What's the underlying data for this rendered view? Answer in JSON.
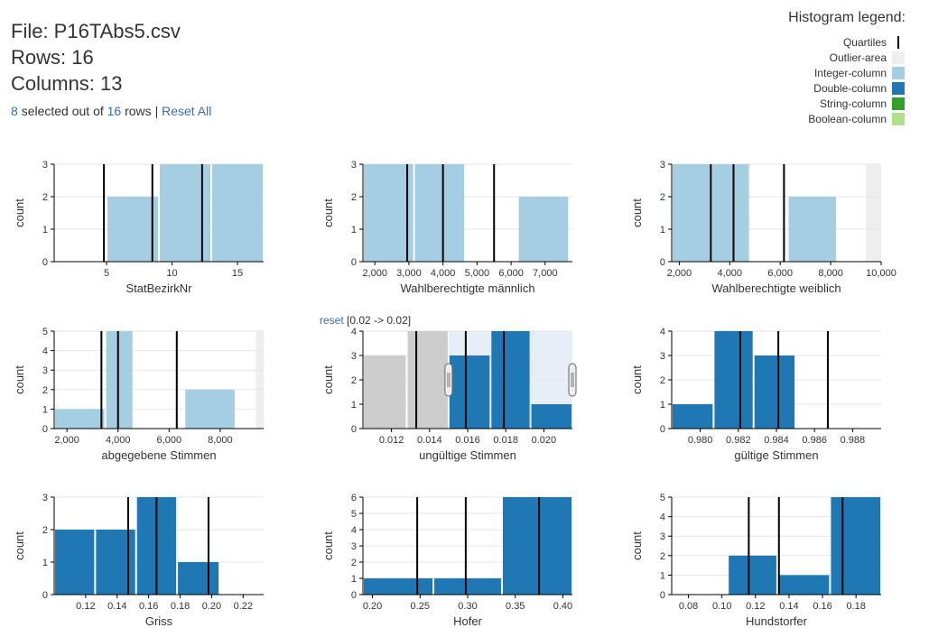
{
  "file": {
    "name_line": "File: P16TAbs5.csv",
    "rows_line": "Rows: 16",
    "columns_line": "Columns: 13"
  },
  "selection": {
    "selected": "8",
    "middle": "selected out of",
    "total": "16",
    "rows_word": "rows",
    "separator": "|",
    "reset_all": "Reset All"
  },
  "legend": {
    "title": "Histogram legend:",
    "items": [
      {
        "label": "Quartiles",
        "kind": "line",
        "color": "#000000"
      },
      {
        "label": "Outlier-area",
        "kind": "box",
        "color": "#eeeeee"
      },
      {
        "label": "Integer-column",
        "kind": "box",
        "color": "#a6cee3"
      },
      {
        "label": "Double-column",
        "kind": "box",
        "color": "#1f78b4"
      },
      {
        "label": "String-column",
        "kind": "box",
        "color": "#33a02c"
      },
      {
        "label": "Boolean-column",
        "kind": "box",
        "color": "#b2df8a"
      }
    ]
  },
  "colors": {
    "integer": "#a6cee3",
    "double": "#1f78b4",
    "deselected": "#cccccc",
    "outlier": "#eeeeee",
    "brush": "#e8eef7",
    "quartile": "#000000",
    "link": "#3b6ea5"
  },
  "chart_data": [
    {
      "type": "bar",
      "column": "StatBezirkNr",
      "column_type": "integer",
      "xlabel": "StatBezirkNr",
      "ylabel": "count",
      "xlim": [
        1,
        17
      ],
      "ylim": [
        0,
        3
      ],
      "xticks": [
        5,
        10,
        15
      ],
      "xtick_labels": [
        "5",
        "10",
        "15"
      ],
      "yticks": [
        0,
        1,
        2,
        3
      ],
      "ytick_labels": [
        "0",
        "1",
        "2",
        "3"
      ],
      "bins": [
        {
          "x0": 5,
          "x1": 9,
          "count": 2
        },
        {
          "x0": 9,
          "x1": 13,
          "count": 3
        },
        {
          "x0": 13,
          "x1": 17,
          "count": 3
        }
      ],
      "quartiles": [
        4.8,
        8.5,
        12.3
      ]
    },
    {
      "type": "bar",
      "column": "Wahlberechtigte männlich",
      "column_type": "integer",
      "xlabel": "Wahlberechtigte männlich",
      "ylabel": "count",
      "xlim": [
        1650,
        7800
      ],
      "ylim": [
        0,
        3
      ],
      "xticks": [
        2000,
        3000,
        4000,
        5000,
        6000,
        7000
      ],
      "xtick_labels": [
        "2,000",
        "3,000",
        "4,000",
        "5,000",
        "6,000",
        "7,000"
      ],
      "yticks": [
        0,
        1,
        2,
        3
      ],
      "ytick_labels": [
        "0",
        "1",
        "2",
        "3"
      ],
      "bins": [
        {
          "x0": 1650,
          "x1": 3150,
          "count": 3
        },
        {
          "x0": 3150,
          "x1": 4650,
          "count": 3
        },
        {
          "x0": 6200,
          "x1": 7700,
          "count": 2
        }
      ],
      "quartiles": [
        2950,
        4000,
        5500
      ]
    },
    {
      "type": "bar",
      "column": "Wahlberechtigte weiblich",
      "column_type": "integer",
      "xlabel": "Wahlberechtigte weiblich",
      "ylabel": "count",
      "xlim": [
        1700,
        10000
      ],
      "ylim": [
        0,
        3
      ],
      "outlier_from": 9400,
      "xticks": [
        2000,
        4000,
        6000,
        8000,
        10000
      ],
      "xtick_labels": [
        "2,000",
        "4,000",
        "6,000",
        "8,000",
        "10,000"
      ],
      "yticks": [
        0,
        1,
        2,
        3
      ],
      "ytick_labels": [
        "0",
        "1",
        "2",
        "3"
      ],
      "bins": [
        {
          "x0": 1700,
          "x1": 3250,
          "count": 3
        },
        {
          "x0": 3250,
          "x1": 4800,
          "count": 3
        },
        {
          "x0": 6300,
          "x1": 8250,
          "count": 2
        }
      ],
      "quartiles": [
        3250,
        4150,
        6150
      ]
    },
    {
      "type": "bar",
      "column": "abgegebene Stimmen",
      "column_type": "integer",
      "xlabel": "abgegebene Stimmen",
      "ylabel": "count",
      "xlim": [
        1500,
        9700
      ],
      "ylim": [
        0,
        5
      ],
      "outlier_from": 9400,
      "xticks": [
        2000,
        4000,
        6000,
        8000
      ],
      "xtick_labels": [
        "2,000",
        "4,000",
        "6,000",
        "8,000"
      ],
      "yticks": [
        0,
        1,
        2,
        3,
        4,
        5
      ],
      "ytick_labels": [
        "0",
        "1",
        "2",
        "3",
        "4",
        "5"
      ],
      "bins": [
        {
          "x0": 1500,
          "x1": 3500,
          "count": 1
        },
        {
          "x0": 3500,
          "x1": 4600,
          "count": 5
        },
        {
          "x0": 6600,
          "x1": 8600,
          "count": 2
        }
      ],
      "quartiles": [
        3350,
        4000,
        6300
      ]
    },
    {
      "type": "bar",
      "column": "ungültige Stimmen",
      "column_type": "double",
      "xlabel": "ungültige Stimmen",
      "ylabel": "count",
      "xlim": [
        0.0105,
        0.0215
      ],
      "ylim": [
        0,
        4
      ],
      "brush": [
        0.015,
        0.0215
      ],
      "reset_link": "reset",
      "reset_range": "[0.02 -> 0.02]",
      "xticks": [
        0.012,
        0.014,
        0.016,
        0.018,
        0.02
      ],
      "xtick_labels": [
        "0.012",
        "0.014",
        "0.016",
        "0.018",
        "0.020"
      ],
      "yticks": [
        0,
        1,
        2,
        3,
        4
      ],
      "ytick_labels": [
        "0",
        "1",
        "2",
        "3",
        "4"
      ],
      "bins": [
        {
          "x0": 0.0105,
          "x1": 0.0128,
          "count": 3,
          "selected": false
        },
        {
          "x0": 0.0128,
          "x1": 0.015,
          "count": 4,
          "selected": false
        },
        {
          "x0": 0.015,
          "x1": 0.0172,
          "count": 3,
          "selected": true
        },
        {
          "x0": 0.0172,
          "x1": 0.0193,
          "count": 4,
          "selected": true
        },
        {
          "x0": 0.0193,
          "x1": 0.0215,
          "count": 1,
          "selected": true
        }
      ],
      "quartiles": [
        0.0133,
        0.0159,
        0.0179
      ]
    },
    {
      "type": "bar",
      "column": "gültige Stimmen",
      "column_type": "double",
      "xlabel": "gültige Stimmen",
      "ylabel": "count",
      "xlim": [
        0.9785,
        0.9895
      ],
      "ylim": [
        0,
        4
      ],
      "xticks": [
        0.98,
        0.982,
        0.984,
        0.986,
        0.988
      ],
      "xtick_labels": [
        "0.980",
        "0.982",
        "0.984",
        "0.986",
        "0.988"
      ],
      "yticks": [
        0,
        1,
        2,
        3,
        4
      ],
      "ytick_labels": [
        "0",
        "1",
        "2",
        "3",
        "4"
      ],
      "bins": [
        {
          "x0": 0.9785,
          "x1": 0.9807,
          "count": 1
        },
        {
          "x0": 0.9807,
          "x1": 0.9828,
          "count": 4
        },
        {
          "x0": 0.9828,
          "x1": 0.985,
          "count": 3
        }
      ],
      "quartiles": [
        0.9821,
        0.9841,
        0.9867
      ]
    },
    {
      "type": "bar",
      "column": "Griss",
      "column_type": "double",
      "xlabel": "Griss",
      "ylabel": "count",
      "xlim": [
        0.1,
        0.233
      ],
      "ylim": [
        0,
        3
      ],
      "xticks": [
        0.12,
        0.14,
        0.16,
        0.18,
        0.2,
        0.22
      ],
      "xtick_labels": [
        "0.12",
        "0.14",
        "0.16",
        "0.18",
        "0.20",
        "0.22"
      ],
      "yticks": [
        0,
        1,
        2,
        3
      ],
      "ytick_labels": [
        "0",
        "1",
        "2",
        "3"
      ],
      "bins": [
        {
          "x0": 0.1,
          "x1": 0.126,
          "count": 2
        },
        {
          "x0": 0.126,
          "x1": 0.152,
          "count": 2
        },
        {
          "x0": 0.152,
          "x1": 0.178,
          "count": 3
        },
        {
          "x0": 0.178,
          "x1": 0.205,
          "count": 1
        }
      ],
      "quartiles": [
        0.147,
        0.165,
        0.198
      ]
    },
    {
      "type": "bar",
      "column": "Hofer",
      "column_type": "double",
      "xlabel": "Hofer",
      "ylabel": "count",
      "xlim": [
        0.19,
        0.41
      ],
      "ylim": [
        0,
        6
      ],
      "xticks": [
        0.2,
        0.25,
        0.3,
        0.35,
        0.4
      ],
      "xtick_labels": [
        "0.20",
        "0.25",
        "0.30",
        "0.35",
        "0.40"
      ],
      "yticks": [
        0,
        1,
        2,
        3,
        4,
        5,
        6
      ],
      "ytick_labels": [
        "0",
        "1",
        "2",
        "3",
        "4",
        "5",
        "6"
      ],
      "bins": [
        {
          "x0": 0.19,
          "x1": 0.264,
          "count": 1
        },
        {
          "x0": 0.264,
          "x1": 0.336,
          "count": 1
        },
        {
          "x0": 0.336,
          "x1": 0.41,
          "count": 6
        }
      ],
      "quartiles": [
        0.247,
        0.298,
        0.375
      ]
    },
    {
      "type": "bar",
      "column": "Hundstorfer",
      "column_type": "double",
      "xlabel": "Hundstorfer",
      "ylabel": "count",
      "xlim": [
        0.07,
        0.195
      ],
      "ylim": [
        0,
        5
      ],
      "xticks": [
        0.08,
        0.1,
        0.12,
        0.14,
        0.16,
        0.18
      ],
      "xtick_labels": [
        "0.08",
        "0.10",
        "0.12",
        "0.14",
        "0.16",
        "0.18"
      ],
      "yticks": [
        0,
        1,
        2,
        3,
        4,
        5
      ],
      "ytick_labels": [
        "0",
        "1",
        "2",
        "3",
        "4",
        "5"
      ],
      "bins": [
        {
          "x0": 0.1035,
          "x1": 0.133,
          "count": 2
        },
        {
          "x0": 0.133,
          "x1": 0.1645,
          "count": 1
        },
        {
          "x0": 0.1645,
          "x1": 0.195,
          "count": 5
        }
      ],
      "quartiles": [
        0.116,
        0.134,
        0.172
      ]
    }
  ]
}
